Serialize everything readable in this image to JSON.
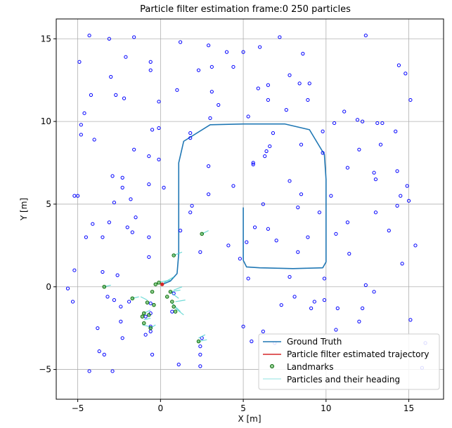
{
  "chart_data": {
    "type": "line",
    "title": "Particle filter estimation frame:0 250 particles",
    "xlabel": "X [m]",
    "ylabel": "Y [m]",
    "xlim": [
      -6.3,
      17.1
    ],
    "ylim": [
      -6.8,
      16.2
    ],
    "xticks": [
      -5,
      0,
      5,
      10,
      15
    ],
    "yticks": [
      -5,
      0,
      5,
      10,
      15
    ],
    "grid": true,
    "legend_position": "lower-right",
    "legend": {
      "ground_truth": "Ground Truth",
      "estimated": "Particle filter estimated trajectory",
      "landmarks": "Landmarks",
      "particles": "Particles and their heading"
    },
    "colors": {
      "ground_truth": "#1f77b4",
      "particles": "#0000ff",
      "landmarks": "#2ca02c",
      "heading": "#48d1cc",
      "estimate": "#d62728",
      "grid": "#b0b0b0"
    },
    "series": [
      {
        "name": "Ground Truth",
        "x": [
          5.0,
          5.0,
          5.2,
          6.0,
          8.0,
          9.8,
          10.0,
          10.0,
          9.9,
          9.0,
          7.5,
          5.0,
          3.0,
          1.4,
          1.1,
          1.1,
          1.0,
          0.6,
          0.0
        ],
        "y": [
          4.8,
          1.6,
          1.2,
          1.15,
          1.1,
          1.15,
          1.5,
          6.5,
          8.0,
          9.5,
          9.85,
          9.85,
          9.8,
          8.8,
          7.5,
          2.0,
          0.8,
          0.35,
          0.1
        ]
      }
    ],
    "estimate_points": [
      [
        0.1,
        0.15
      ]
    ],
    "landmarks": [
      [
        -0.3,
        0.15
      ],
      [
        -0.1,
        0.25
      ],
      [
        -0.5,
        -0.3
      ],
      [
        -0.8,
        -0.95
      ],
      [
        -1.0,
        -1.6
      ],
      [
        -1.1,
        -1.8
      ],
      [
        -0.7,
        -1.7
      ],
      [
        -1.0,
        -2.2
      ],
      [
        -0.6,
        -2.5
      ],
      [
        0.8,
        -1.2
      ],
      [
        0.9,
        -1.5
      ],
      [
        0.8,
        1.9
      ],
      [
        -0.4,
        -1.1
      ],
      [
        0.7,
        -0.9
      ],
      [
        0.4,
        -0.6
      ],
      [
        0.6,
        -0.3
      ],
      [
        -3.4,
        0.0
      ],
      [
        -1.7,
        -0.7
      ],
      [
        2.3,
        -3.3
      ],
      [
        2.5,
        3.2
      ]
    ],
    "particles": [
      [
        -4.3,
        15.2
      ],
      [
        -3.1,
        15.0
      ],
      [
        -1.6,
        15.1
      ],
      [
        -4.9,
        13.6
      ],
      [
        -3.0,
        12.7
      ],
      [
        -2.1,
        13.9
      ],
      [
        -0.6,
        13.6
      ],
      [
        -0.6,
        13.1
      ],
      [
        1.2,
        14.8
      ],
      [
        2.9,
        14.6
      ],
      [
        2.3,
        13.1
      ],
      [
        3.1,
        13.3
      ],
      [
        4.0,
        14.2
      ],
      [
        4.4,
        13.3
      ],
      [
        5.0,
        14.2
      ],
      [
        6.0,
        14.5
      ],
      [
        7.2,
        15.1
      ],
      [
        8.6,
        14.1
      ],
      [
        12.4,
        15.2
      ],
      [
        14.4,
        13.4
      ],
      [
        14.8,
        12.9
      ],
      [
        15.1,
        11.3
      ],
      [
        7.8,
        12.8
      ],
      [
        8.4,
        12.3
      ],
      [
        9.0,
        12.3
      ],
      [
        5.9,
        12.0
      ],
      [
        6.5,
        12.2
      ],
      [
        3.1,
        11.8
      ],
      [
        3.5,
        11.0
      ],
      [
        3.0,
        10.2
      ],
      [
        5.3,
        10.3
      ],
      [
        6.5,
        11.3
      ],
      [
        7.6,
        10.7
      ],
      [
        8.9,
        11.3
      ],
      [
        -4.2,
        11.6
      ],
      [
        -2.7,
        11.6
      ],
      [
        -2.2,
        11.4
      ],
      [
        -0.1,
        11.2
      ],
      [
        1.0,
        11.9
      ],
      [
        -4.6,
        10.5
      ],
      [
        -4.8,
        9.8
      ],
      [
        -4.8,
        9.2
      ],
      [
        -4.0,
        8.9
      ],
      [
        -0.5,
        9.5
      ],
      [
        -0.1,
        9.6
      ],
      [
        1.8,
        9.3
      ],
      [
        1.8,
        9.0
      ],
      [
        6.8,
        9.3
      ],
      [
        9.8,
        9.4
      ],
      [
        10.5,
        9.9
      ],
      [
        11.1,
        10.6
      ],
      [
        11.9,
        10.1
      ],
      [
        12.2,
        10.0
      ],
      [
        13.1,
        9.9
      ],
      [
        13.4,
        9.9
      ],
      [
        14.2,
        9.4
      ],
      [
        -1.6,
        8.3
      ],
      [
        -0.7,
        7.9
      ],
      [
        -0.1,
        7.7
      ],
      [
        2.9,
        7.3
      ],
      [
        5.6,
        7.5
      ],
      [
        5.6,
        7.4
      ],
      [
        6.4,
        8.2
      ],
      [
        6.3,
        7.9
      ],
      [
        6.6,
        8.5
      ],
      [
        8.5,
        8.6
      ],
      [
        9.8,
        8.1
      ],
      [
        12.0,
        8.3
      ],
      [
        13.3,
        8.6
      ],
      [
        11.3,
        7.2
      ],
      [
        12.9,
        6.9
      ],
      [
        13.0,
        6.5
      ],
      [
        14.3,
        7.0
      ],
      [
        -2.9,
        6.7
      ],
      [
        -2.3,
        6.6
      ],
      [
        -2.3,
        6.0
      ],
      [
        -1.8,
        5.3
      ],
      [
        -0.7,
        6.2
      ],
      [
        0.2,
        6.0
      ],
      [
        2.9,
        5.6
      ],
      [
        4.4,
        6.1
      ],
      [
        7.8,
        6.4
      ],
      [
        8.5,
        5.6
      ],
      [
        10.3,
        5.5
      ],
      [
        14.5,
        5.5
      ],
      [
        14.9,
        6.1
      ],
      [
        -5.2,
        5.5
      ],
      [
        -5.0,
        5.5
      ],
      [
        -2.8,
        5.1
      ],
      [
        1.9,
        4.9
      ],
      [
        6.2,
        5.0
      ],
      [
        8.3,
        4.8
      ],
      [
        9.6,
        4.5
      ],
      [
        1.8,
        4.5
      ],
      [
        13.0,
        4.5
      ],
      [
        14.3,
        4.9
      ],
      [
        15.0,
        5.2
      ],
      [
        -4.1,
        3.8
      ],
      [
        -3.1,
        3.9
      ],
      [
        -1.5,
        4.2
      ],
      [
        -2.0,
        3.6
      ],
      [
        -1.7,
        3.3
      ],
      [
        -4.5,
        3.0
      ],
      [
        -3.5,
        3.0
      ],
      [
        -0.7,
        3.0
      ],
      [
        1.2,
        3.4
      ],
      [
        5.7,
        3.6
      ],
      [
        6.5,
        3.5
      ],
      [
        8.9,
        3.0
      ],
      [
        10.6,
        3.2
      ],
      [
        11.3,
        3.9
      ],
      [
        13.8,
        3.4
      ],
      [
        15.4,
        2.5
      ],
      [
        4.1,
        2.5
      ],
      [
        5.2,
        2.7
      ],
      [
        7.0,
        2.8
      ],
      [
        8.3,
        2.1
      ],
      [
        2.4,
        2.1
      ],
      [
        4.8,
        1.7
      ],
      [
        11.4,
        2.0
      ],
      [
        14.6,
        1.4
      ],
      [
        -0.7,
        1.8
      ],
      [
        -5.2,
        1.0
      ],
      [
        -3.5,
        0.9
      ],
      [
        -2.6,
        0.7
      ],
      [
        5.3,
        0.5
      ],
      [
        7.8,
        0.6
      ],
      [
        9.9,
        0.5
      ],
      [
        -5.6,
        -0.1
      ],
      [
        -3.2,
        -0.6
      ],
      [
        -2.8,
        -0.8
      ],
      [
        -2.4,
        -1.2
      ],
      [
        -1.9,
        -0.9
      ],
      [
        -5.3,
        -0.9
      ],
      [
        -0.6,
        -1.0
      ],
      [
        0.8,
        -0.4
      ],
      [
        8.1,
        -0.6
      ],
      [
        9.3,
        -0.9
      ],
      [
        9.9,
        -0.8
      ],
      [
        12.4,
        0.1
      ],
      [
        12.9,
        -0.3
      ],
      [
        7.3,
        -1.1
      ],
      [
        9.1,
        -1.3
      ],
      [
        10.7,
        -1.3
      ],
      [
        12.2,
        -1.3
      ],
      [
        -0.9,
        -1.8
      ],
      [
        -0.6,
        -1.6
      ],
      [
        -0.6,
        -2.4
      ],
      [
        -0.6,
        -2.7
      ],
      [
        -3.8,
        -2.5
      ],
      [
        -2.4,
        -2.1
      ],
      [
        -0.9,
        -2.9
      ],
      [
        -2.3,
        -3.1
      ],
      [
        0.7,
        -1.5
      ],
      [
        -3.7,
        -3.9
      ],
      [
        -3.4,
        -4.1
      ],
      [
        -0.5,
        -4.1
      ],
      [
        2.5,
        -3.1
      ],
      [
        2.4,
        -3.6
      ],
      [
        2.4,
        -4.1
      ],
      [
        5.0,
        -2.4
      ],
      [
        5.5,
        -3.3
      ],
      [
        6.2,
        -2.7
      ],
      [
        10.6,
        -2.6
      ],
      [
        12.0,
        -2.1
      ],
      [
        15.1,
        -2.0
      ],
      [
        -4.3,
        -5.1
      ],
      [
        -2.9,
        -5.1
      ],
      [
        1.1,
        -4.7
      ],
      [
        2.4,
        -4.8
      ],
      [
        6.9,
        -3.4
      ],
      [
        16.0,
        -3.4
      ],
      [
        15.8,
        -4.9
      ]
    ],
    "headings": [
      [
        0.0,
        0.3,
        0.6,
        0.4
      ],
      [
        0.2,
        0.25,
        0.8,
        0.6
      ],
      [
        0.6,
        -0.3,
        1.2,
        -0.2
      ],
      [
        0.8,
        -0.2,
        1.3,
        0.0
      ],
      [
        0.7,
        -0.4,
        1.1,
        -0.7
      ],
      [
        0.9,
        -0.9,
        1.5,
        -0.8
      ],
      [
        0.9,
        -1.3,
        1.4,
        -1.7
      ],
      [
        0.7,
        -1.0,
        1.2,
        -1.5
      ],
      [
        -0.8,
        -0.8,
        -1.2,
        -0.6
      ],
      [
        -1.7,
        -0.7,
        -1.3,
        -0.6
      ],
      [
        -3.4,
        0.0,
        -3.0,
        0.1
      ],
      [
        -1.0,
        -1.6,
        -0.6,
        -1.4
      ],
      [
        -1.1,
        -2.3,
        -0.7,
        -2.4
      ],
      [
        -0.6,
        -2.5,
        -0.3,
        -2.3
      ],
      [
        0.8,
        1.9,
        1.3,
        2.1
      ],
      [
        2.5,
        3.2,
        2.9,
        3.4
      ],
      [
        2.3,
        -3.3,
        2.8,
        -3.2
      ],
      [
        2.3,
        -3.1,
        2.7,
        -2.9
      ],
      [
        -1.0,
        -2.0,
        -0.6,
        -1.9
      ]
    ]
  }
}
